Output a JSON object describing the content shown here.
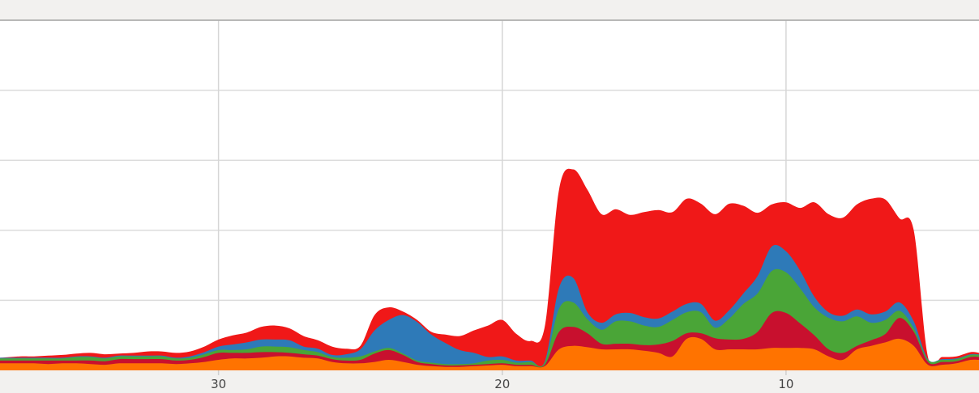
{
  "chart_data": {
    "type": "area",
    "stacked": true,
    "smooth": true,
    "grid": true,
    "title": "",
    "xlabel": "",
    "ylabel": "",
    "x_axis_reversed": true,
    "xlim": [
      37.7,
      3.2
    ],
    "ylim": [
      0,
      5
    ],
    "x_ticks": [
      30,
      20,
      10
    ],
    "x_tick_labels": [
      "30",
      "20",
      "10"
    ],
    "y_gridlines": [
      1,
      2,
      3,
      4,
      5
    ],
    "x": [
      37.7,
      37.0,
      36.5,
      36.0,
      35.5,
      35.0,
      34.5,
      34.0,
      33.5,
      33.0,
      32.5,
      32.0,
      31.5,
      31.0,
      30.5,
      30.0,
      29.5,
      29.0,
      28.5,
      28.0,
      27.5,
      27.0,
      26.5,
      26.0,
      25.5,
      25.0,
      24.5,
      24.0,
      23.5,
      23.0,
      22.5,
      22.0,
      21.5,
      21.0,
      20.5,
      20.0,
      19.5,
      19.0,
      18.5,
      18.0,
      17.5,
      17.0,
      16.5,
      16.0,
      15.5,
      15.0,
      14.5,
      14.0,
      13.5,
      13.0,
      12.5,
      12.0,
      11.5,
      11.0,
      10.5,
      10.0,
      9.5,
      9.0,
      8.5,
      8.0,
      7.5,
      7.0,
      6.5,
      6.0,
      5.5,
      5.0,
      4.5,
      4.0,
      3.5,
      3.2
    ],
    "series": [
      {
        "color": "#ff7300",
        "values": [
          0.1,
          0.1,
          0.1,
          0.09,
          0.1,
          0.1,
          0.09,
          0.08,
          0.1,
          0.1,
          0.1,
          0.1,
          0.09,
          0.1,
          0.12,
          0.15,
          0.17,
          0.17,
          0.18,
          0.2,
          0.2,
          0.18,
          0.17,
          0.12,
          0.1,
          0.1,
          0.12,
          0.15,
          0.12,
          0.08,
          0.06,
          0.05,
          0.05,
          0.06,
          0.07,
          0.08,
          0.06,
          0.06,
          0.06,
          0.3,
          0.35,
          0.33,
          0.3,
          0.3,
          0.3,
          0.28,
          0.25,
          0.2,
          0.45,
          0.45,
          0.3,
          0.3,
          0.3,
          0.3,
          0.32,
          0.32,
          0.32,
          0.3,
          0.2,
          0.15,
          0.3,
          0.35,
          0.4,
          0.45,
          0.35,
          0.08,
          0.08,
          0.1,
          0.15,
          0.15
        ]
      },
      {
        "color": "#c8102e",
        "values": [
          0.04,
          0.04,
          0.04,
          0.05,
          0.04,
          0.04,
          0.05,
          0.05,
          0.06,
          0.06,
          0.06,
          0.06,
          0.05,
          0.05,
          0.07,
          0.1,
          0.08,
          0.08,
          0.08,
          0.06,
          0.05,
          0.05,
          0.04,
          0.04,
          0.04,
          0.05,
          0.12,
          0.14,
          0.1,
          0.04,
          0.03,
          0.02,
          0.02,
          0.02,
          0.02,
          0.02,
          0.02,
          0.02,
          0.02,
          0.25,
          0.27,
          0.2,
          0.08,
          0.08,
          0.08,
          0.08,
          0.12,
          0.22,
          0.08,
          0.08,
          0.16,
          0.14,
          0.15,
          0.25,
          0.5,
          0.5,
          0.35,
          0.2,
          0.1,
          0.1,
          0.05,
          0.08,
          0.12,
          0.3,
          0.2,
          0.04,
          0.04,
          0.03,
          0.04,
          0.04
        ]
      },
      {
        "color": "#4aa537",
        "values": [
          0.03,
          0.03,
          0.03,
          0.03,
          0.03,
          0.05,
          0.05,
          0.04,
          0.04,
          0.04,
          0.04,
          0.04,
          0.03,
          0.03,
          0.04,
          0.04,
          0.04,
          0.05,
          0.08,
          0.08,
          0.08,
          0.06,
          0.05,
          0.03,
          0.04,
          0.05,
          0.03,
          0.03,
          0.02,
          0.02,
          0.02,
          0.02,
          0.02,
          0.02,
          0.05,
          0.05,
          0.03,
          0.04,
          0.03,
          0.33,
          0.35,
          0.2,
          0.2,
          0.32,
          0.32,
          0.28,
          0.25,
          0.3,
          0.3,
          0.3,
          0.15,
          0.3,
          0.5,
          0.55,
          0.6,
          0.58,
          0.5,
          0.4,
          0.45,
          0.45,
          0.42,
          0.25,
          0.2,
          0.1,
          0.05,
          0.03,
          0.03,
          0.03,
          0.03,
          0.03
        ]
      },
      {
        "color": "#2e7ab8",
        "values": [
          0.01,
          0.01,
          0.01,
          0.01,
          0.01,
          0.01,
          0.01,
          0.01,
          0.01,
          0.01,
          0.01,
          0.01,
          0.01,
          0.02,
          0.03,
          0.05,
          0.08,
          0.1,
          0.1,
          0.1,
          0.1,
          0.05,
          0.05,
          0.03,
          0.05,
          0.1,
          0.3,
          0.4,
          0.55,
          0.55,
          0.4,
          0.3,
          0.2,
          0.15,
          0.05,
          0.05,
          0.03,
          0.02,
          0.02,
          0.3,
          0.35,
          0.1,
          0.1,
          0.1,
          0.12,
          0.12,
          0.12,
          0.12,
          0.12,
          0.12,
          0.1,
          0.12,
          0.15,
          0.25,
          0.35,
          0.3,
          0.25,
          0.15,
          0.08,
          0.08,
          0.1,
          0.12,
          0.12,
          0.12,
          0.1,
          0.01,
          0.01,
          0.01,
          0.01,
          0.01
        ]
      },
      {
        "color": "#f01818",
        "values": [
          0.0,
          0.02,
          0.02,
          0.03,
          0.04,
          0.04,
          0.05,
          0.05,
          0.03,
          0.04,
          0.06,
          0.06,
          0.07,
          0.07,
          0.08,
          0.1,
          0.13,
          0.14,
          0.18,
          0.2,
          0.17,
          0.15,
          0.12,
          0.12,
          0.08,
          0.05,
          0.22,
          0.18,
          0.05,
          0.03,
          0.04,
          0.12,
          0.2,
          0.32,
          0.45,
          0.52,
          0.38,
          0.28,
          0.5,
          1.4,
          1.55,
          1.75,
          1.55,
          1.5,
          1.4,
          1.5,
          1.55,
          1.42,
          1.5,
          1.43,
          1.52,
          1.52,
          1.25,
          0.9,
          0.6,
          0.7,
          0.9,
          1.35,
          1.4,
          1.4,
          1.5,
          1.65,
          1.6,
          1.2,
          1.3,
          0.03,
          0.03,
          0.03,
          0.03,
          0.02
        ]
      }
    ]
  }
}
